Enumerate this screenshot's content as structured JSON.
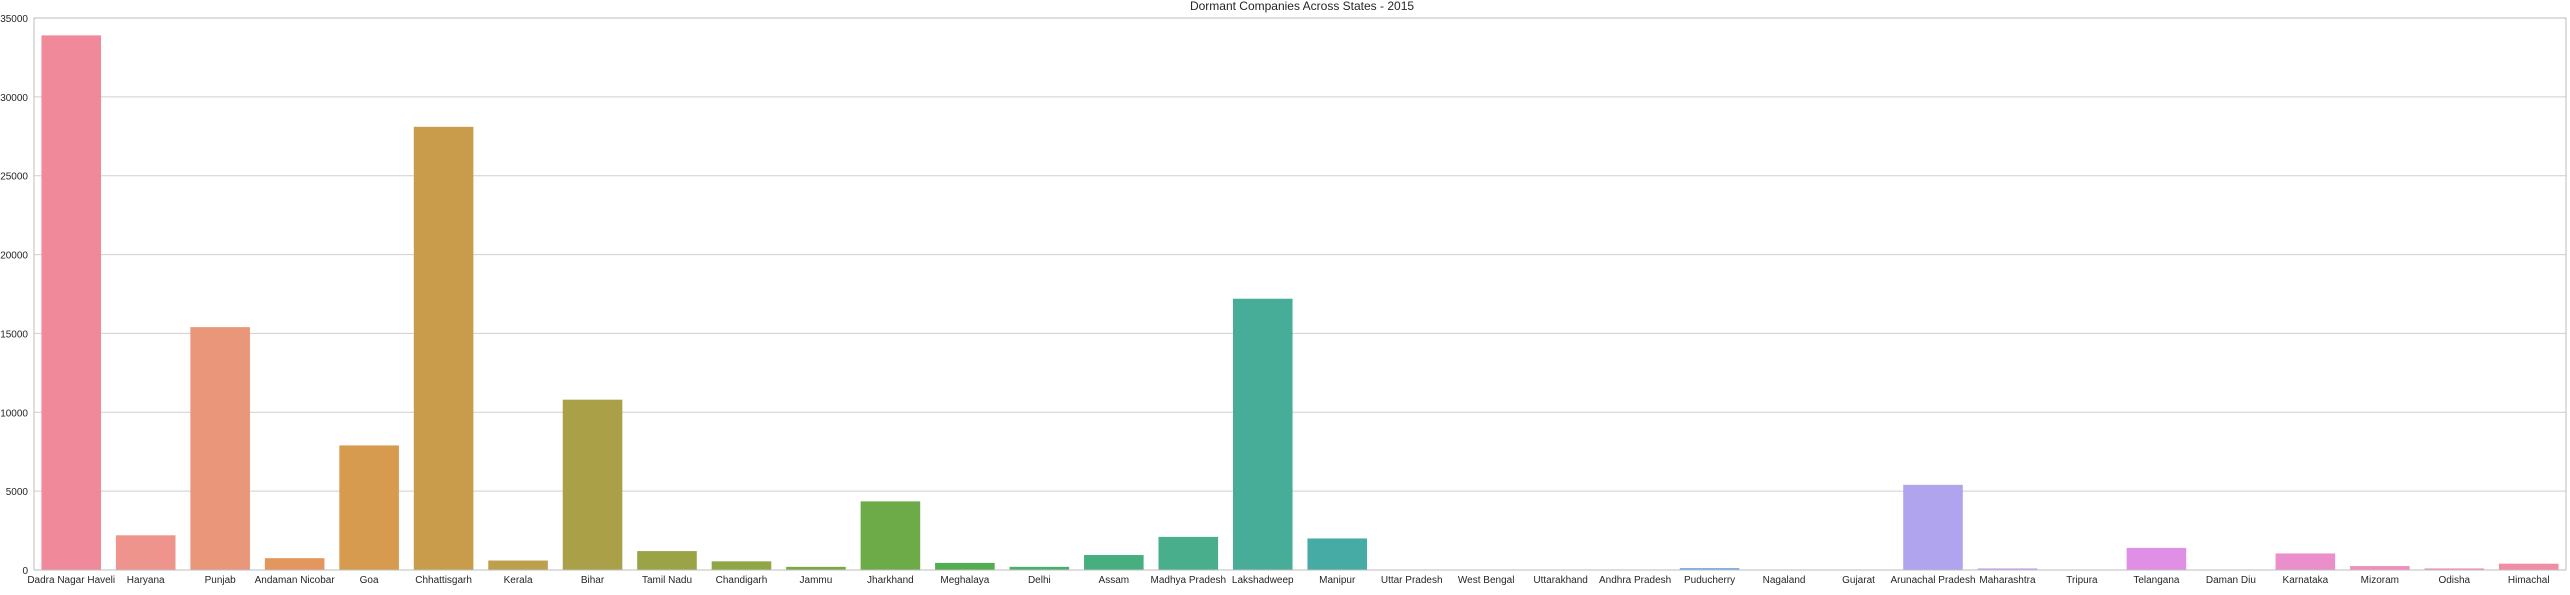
{
  "chart_data": {
    "type": "bar",
    "title": "Dormant Companies Across States - 2015",
    "xlabel": "",
    "ylabel": "",
    "ylim": [
      0,
      35000
    ],
    "grid": "horizontal",
    "yticks": [
      0,
      5000,
      10000,
      15000,
      20000,
      25000,
      30000,
      35000
    ],
    "ytick_labels": [
      "0",
      "5000",
      "10000",
      "15000",
      "20000",
      "25000",
      "30000",
      "35000"
    ],
    "categories": [
      "Dadra Nagar Haveli",
      "Haryana",
      "Punjab",
      "Andaman Nicobar",
      "Goa",
      "Chhattisgarh",
      "Kerala",
      "Bihar",
      "Tamil Nadu",
      "Chandigarh",
      "Jammu",
      "Jharkhand",
      "Meghalaya",
      "Delhi",
      "Assam",
      "Madhya Pradesh",
      "Lakshadweep",
      "Manipur",
      "Uttar Pradesh",
      "West Bengal",
      "Uttarakhand",
      "Andhra Pradesh",
      "Puducherry",
      "Nagaland",
      "Gujarat",
      "Arunachal Pradesh",
      "Maharashtra",
      "Tripura",
      "Telangana",
      "Daman Diu",
      "Karnataka",
      "Mizoram",
      "Odisha",
      "Himachal"
    ],
    "values": [
      33900,
      2200,
      15400,
      750,
      7900,
      28100,
      600,
      10800,
      1200,
      550,
      200,
      4350,
      450,
      200,
      950,
      2100,
      17200,
      2000,
      30,
      30,
      30,
      30,
      120,
      30,
      30,
      5400,
      100,
      30,
      1400,
      30,
      1050,
      250,
      100,
      400
    ],
    "colors": [
      "#f0899a",
      "#ee948d",
      "#e9967a",
      "#e3965d",
      "#d69b4e",
      "#c99c4c",
      "#bd9f4c",
      "#a9a048",
      "#9aa447",
      "#8ea646",
      "#7ea83f",
      "#6daa48",
      "#52ad50",
      "#4aaf6a",
      "#47af7f",
      "#48ae8b",
      "#48ad98",
      "#46aba5",
      "#48aab1",
      "#4aa8bb",
      "#4ea6c5",
      "#52a5d1",
      "#74a9e6",
      "#8aa7ec",
      "#9ea6f0",
      "#b0a4ee",
      "#c3a0ec",
      "#d19ae9",
      "#e08fe6",
      "#e78fd8",
      "#eb8fcc",
      "#ef8fbd",
      "#f08fb0",
      "#f28ca2"
    ]
  }
}
